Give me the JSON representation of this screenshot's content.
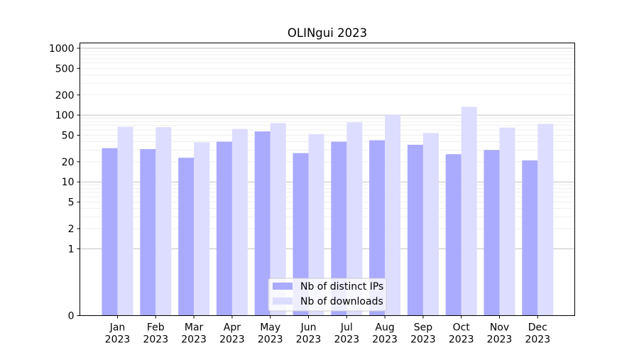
{
  "chart_data": {
    "type": "bar",
    "title": "OLINgui 2023",
    "xlabel": "",
    "ylabel": "",
    "yscale": "symlog",
    "ylim": [
      0,
      1200
    ],
    "yticks": [
      0,
      1,
      2,
      5,
      10,
      20,
      50,
      100,
      200,
      500,
      1000
    ],
    "grid": true,
    "legend_position": "lower-center",
    "categories": [
      "Jan\n2023",
      "Feb\n2023",
      "Mar\n2023",
      "Apr\n2023",
      "May\n2023",
      "Jun\n2023",
      "Jul\n2023",
      "Aug\n2023",
      "Sep\n2023",
      "Oct\n2023",
      "Nov\n2023",
      "Dec\n2023"
    ],
    "series": [
      {
        "name": "Nb of distinct IPs",
        "color": "#aaaaff",
        "values": [
          32,
          31,
          23,
          40,
          57,
          27,
          40,
          42,
          36,
          26,
          30,
          21
        ]
      },
      {
        "name": "Nb of downloads",
        "color": "#ddddff",
        "values": [
          67,
          66,
          39,
          62,
          76,
          52,
          78,
          102,
          54,
          133,
          65,
          74
        ]
      }
    ]
  }
}
